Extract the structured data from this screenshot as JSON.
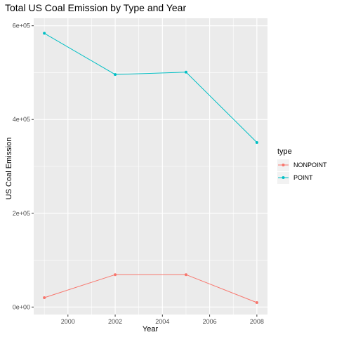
{
  "chart_data": {
    "type": "line",
    "title": "Total US Coal Emission by Type and Year",
    "xlabel": "Year",
    "ylabel": "US Coal Emission",
    "x": [
      1999,
      2002,
      2005,
      2008
    ],
    "x_ticks": [
      2000,
      2002,
      2004,
      2006,
      2008
    ],
    "x_tick_labels": [
      "2000",
      "2002",
      "2004",
      "2006",
      "2008"
    ],
    "y_ticks": [
      0,
      200000,
      400000,
      600000
    ],
    "y_tick_labels": [
      "0e+00",
      "2e+05",
      "4e+05",
      "6e+05"
    ],
    "xlim": [
      1998.55,
      2008.45
    ],
    "ylim": [
      -16000,
      616000
    ],
    "grid": true,
    "panel_background": "#ebebeb",
    "legend": {
      "title": "type",
      "placement": "right"
    },
    "series": [
      {
        "name": "NONPOINT",
        "color": "#f8766d",
        "values": [
          20000,
          69000,
          69000,
          9500
        ]
      },
      {
        "name": "POINT",
        "color": "#00bfc4",
        "values": [
          584000,
          496000,
          501000,
          351000
        ]
      }
    ]
  }
}
